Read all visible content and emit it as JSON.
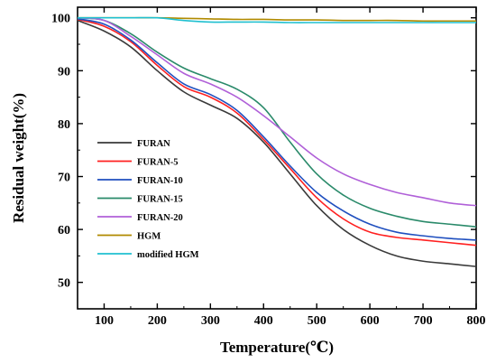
{
  "chart_data": {
    "type": "line",
    "title": "",
    "xlabel": "Temperature(℃)",
    "ylabel": "Residual weight(%)",
    "xlim": [
      50,
      800
    ],
    "ylim": [
      45,
      102
    ],
    "xticks": [
      100,
      200,
      300,
      400,
      500,
      600,
      700,
      800
    ],
    "yticks": [
      50,
      60,
      70,
      80,
      90,
      100
    ],
    "legend_position": "lower-left",
    "x": [
      50,
      100,
      150,
      200,
      250,
      300,
      350,
      400,
      450,
      500,
      550,
      600,
      650,
      700,
      750,
      800
    ],
    "series": [
      {
        "name": "FURAN",
        "color": "#3a3a3a",
        "values": [
          99.5,
          97.5,
          94.5,
          90.0,
          86.0,
          83.5,
          81.0,
          76.5,
          70.5,
          64.5,
          60.0,
          57.0,
          55.0,
          54.0,
          53.5,
          53.0
        ]
      },
      {
        "name": "FURAN-5",
        "color": "#ff2020",
        "values": [
          99.7,
          98.4,
          95.5,
          91.0,
          87.0,
          85.0,
          82.0,
          77.0,
          71.5,
          66.0,
          62.0,
          59.5,
          58.5,
          58.0,
          57.5,
          57.0
        ]
      },
      {
        "name": "FURAN-10",
        "color": "#1f4fbf",
        "values": [
          99.8,
          98.8,
          95.8,
          91.5,
          87.5,
          85.5,
          82.5,
          77.5,
          72.0,
          67.0,
          63.5,
          61.0,
          59.5,
          58.8,
          58.3,
          58.0
        ]
      },
      {
        "name": "FURAN-15",
        "color": "#2a8a6a",
        "values": [
          100.0,
          99.5,
          97.0,
          93.5,
          90.5,
          88.5,
          86.5,
          83.0,
          76.5,
          70.5,
          66.5,
          64.0,
          62.5,
          61.5,
          61.0,
          60.5
        ]
      },
      {
        "name": "FURAN-20",
        "color": "#b060d8",
        "values": [
          100.0,
          99.5,
          96.5,
          93.0,
          89.5,
          87.5,
          85.0,
          81.5,
          77.5,
          73.5,
          70.5,
          68.5,
          67.0,
          66.0,
          65.0,
          64.5
        ]
      },
      {
        "name": "HGM",
        "color": "#b08a00",
        "values": [
          100.0,
          100.0,
          100.0,
          100.0,
          99.9,
          99.8,
          99.7,
          99.7,
          99.6,
          99.6,
          99.5,
          99.5,
          99.5,
          99.4,
          99.4,
          99.4
        ]
      },
      {
        "name": "modified HGM",
        "color": "#20c0d0",
        "values": [
          100.0,
          100.0,
          100.0,
          100.0,
          99.5,
          99.2,
          99.2,
          99.2,
          99.1,
          99.1,
          99.1,
          99.1,
          99.1,
          99.1,
          99.1,
          99.1
        ]
      }
    ]
  }
}
